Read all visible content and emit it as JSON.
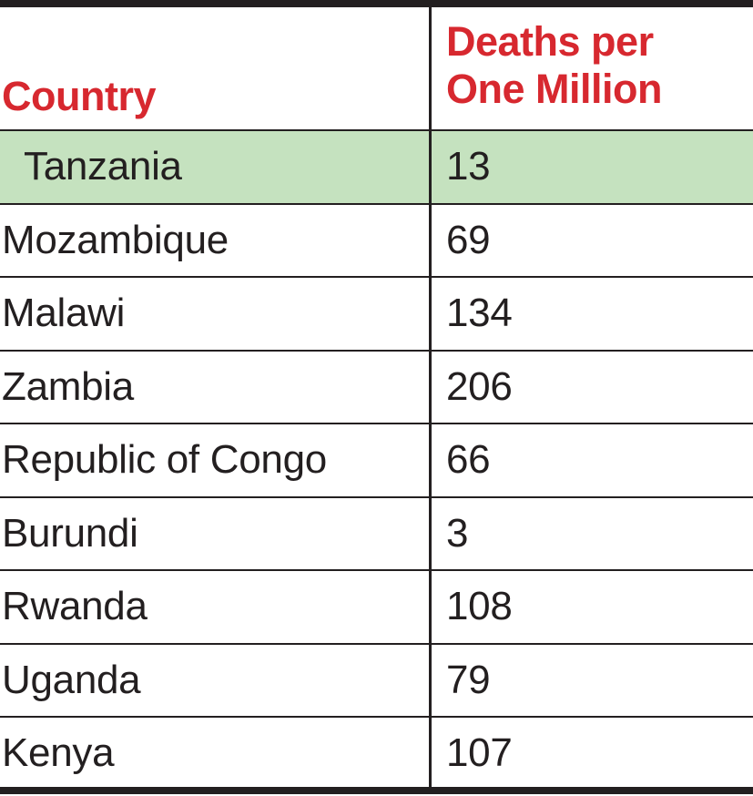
{
  "chart_data": {
    "type": "table",
    "columns": [
      "Country",
      "Deaths per One Million"
    ],
    "header_lines": {
      "country": "Country",
      "deaths_line1": "Deaths per",
      "deaths_line2": "One Million"
    },
    "rows": [
      {
        "country": "Tanzania",
        "value": "13",
        "highlight": true
      },
      {
        "country": "Mozambique",
        "value": "69"
      },
      {
        "country": "Malawi",
        "value": "134"
      },
      {
        "country": "Zambia",
        "value": "206"
      },
      {
        "country": "Republic of Congo",
        "value": "66"
      },
      {
        "country": "Burundi",
        "value": "3"
      },
      {
        "country": "Rwanda",
        "value": "108"
      },
      {
        "country": "Uganda",
        "value": "79"
      },
      {
        "country": "Kenya",
        "value": "107"
      }
    ],
    "colors": {
      "header_text": "#d7282f",
      "highlight_row": "#c5e2bf",
      "rules": "#231f20"
    }
  }
}
